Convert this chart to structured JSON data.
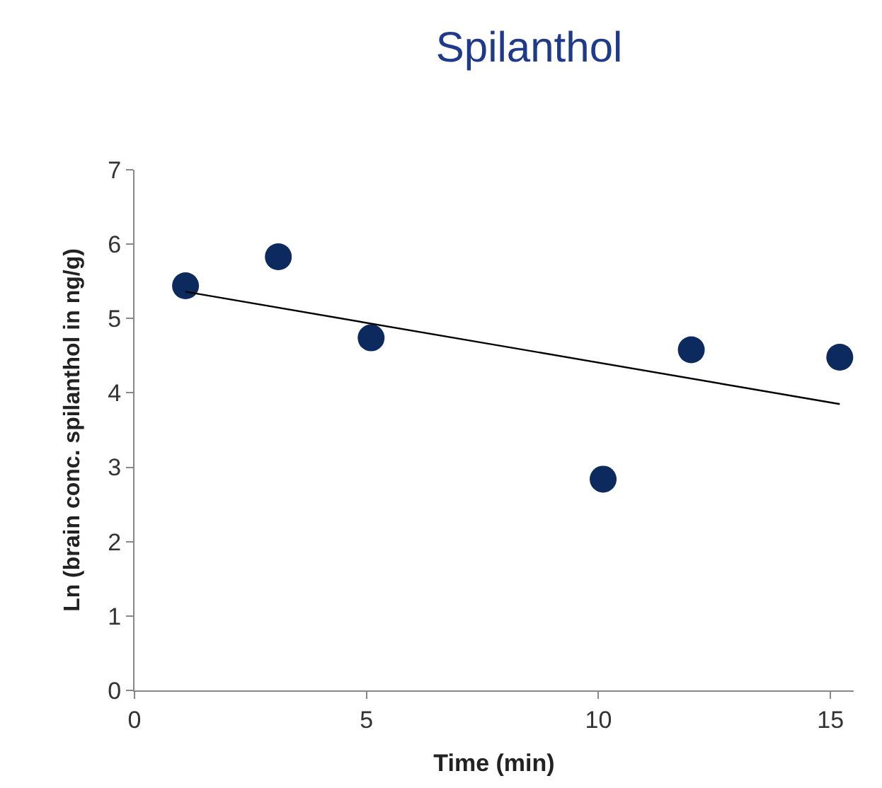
{
  "chart_data": {
    "type": "scatter",
    "title": "Spilanthol",
    "xlabel": "Time (min)",
    "ylabel": "Ln (brain conc. spilanthol in ng/g)",
    "x": [
      1.1,
      3.1,
      5.1,
      10.1,
      12.0,
      15.2
    ],
    "series": [
      {
        "color": "#0d2a5e",
        "values": [
          5.44,
          5.83,
          4.74,
          2.84,
          4.58,
          4.48
        ],
        "marker": "circle"
      },
      {
        "type": "line",
        "color": "#000000",
        "x": [
          1.1,
          15.2
        ],
        "values": [
          5.36,
          3.85
        ],
        "marker": "none",
        "line_style": "solid"
      }
    ],
    "xlim": [
      0,
      15.5
    ],
    "xticks": [
      0,
      5,
      10,
      15
    ],
    "ylim": [
      0,
      7
    ],
    "yticks": [
      0,
      1,
      2,
      3,
      4,
      5,
      6,
      7
    ],
    "grid": false,
    "legend": false
  }
}
